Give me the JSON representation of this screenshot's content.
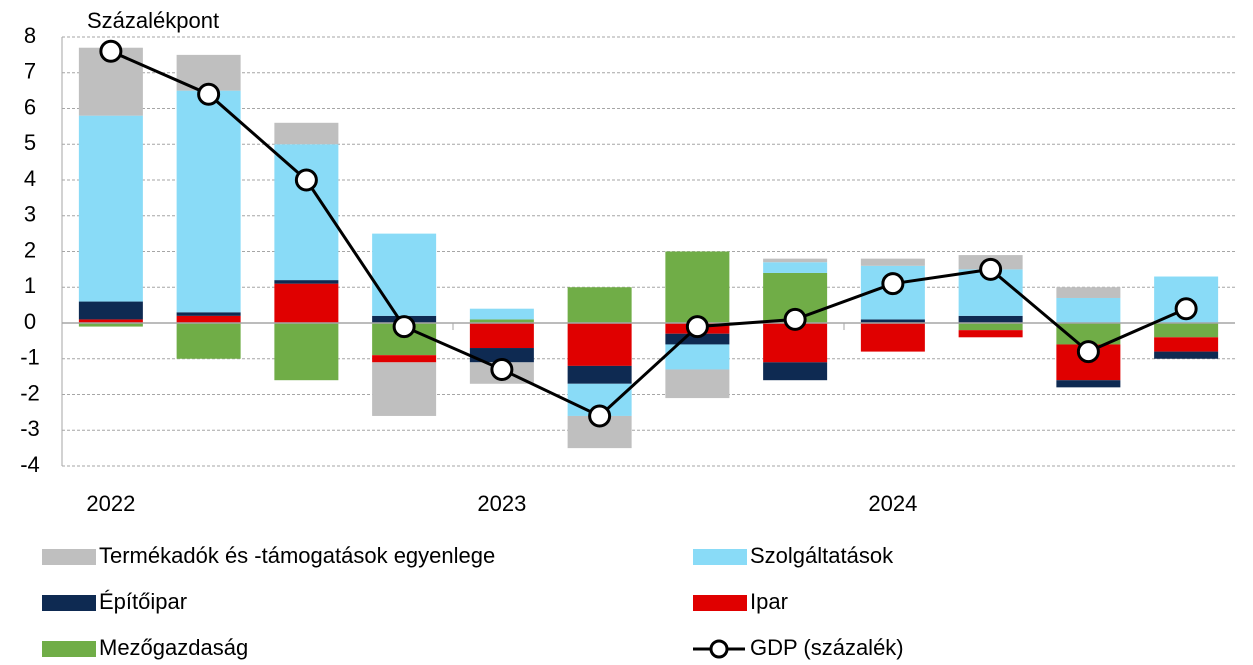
{
  "chart_data": {
    "type": "bar",
    "y_label": "Százalékpont",
    "categories": [
      "2022",
      null,
      null,
      null,
      "2023",
      null,
      null,
      null,
      "2024",
      null,
      null,
      null
    ],
    "series": [
      {
        "name": "Termékadók és -támogatások egyenlege",
        "color": "#bfbfbf",
        "values": [
          1.9,
          1.0,
          0.6,
          -1.5,
          -0.6,
          -0.9,
          -0.8,
          0.1,
          0.2,
          0.4,
          0.3,
          0
        ]
      },
      {
        "name": "Szolgáltatások",
        "color": "#89dbf7",
        "values": [
          5.2,
          6.2,
          3.8,
          2.3,
          0.3,
          -0.9,
          -0.7,
          0.3,
          1.5,
          1.3,
          0.7,
          1.3
        ]
      },
      {
        "name": "Építőipar",
        "color": "#0e2a52",
        "values": [
          0.5,
          0.1,
          0.1,
          0.2,
          -0.4,
          -0.5,
          -0.3,
          -0.5,
          0.1,
          0.2,
          -0.2,
          -0.2
        ]
      },
      {
        "name": "Ipar",
        "color": "#e00000",
        "values": [
          0.1,
          0.2,
          1.1,
          -0.2,
          -0.7,
          -1.2,
          -0.3,
          -1.1,
          -0.8,
          -0.2,
          -1.0,
          -0.4
        ]
      },
      {
        "name": "Mezőgazdaság",
        "color": "#70ad47",
        "values": [
          -0.1,
          -1.0,
          -1.6,
          -0.9,
          0.1,
          1.0,
          2.0,
          1.4,
          0,
          -0.2,
          -0.6,
          -0.4
        ]
      },
      {
        "name": "GDP (százalék)",
        "color": "#000000",
        "type": "line",
        "values": [
          7.6,
          6.4,
          4.0,
          -0.1,
          -1.3,
          -2.6,
          -0.1,
          0.1,
          1.1,
          1.5,
          -0.8,
          0.4
        ]
      }
    ],
    "ylim": [
      -4,
      8
    ],
    "yticks": [
      -4,
      -3,
      -2,
      -1,
      0,
      1,
      2,
      3,
      4,
      5,
      6,
      7,
      8
    ],
    "grid": true
  }
}
